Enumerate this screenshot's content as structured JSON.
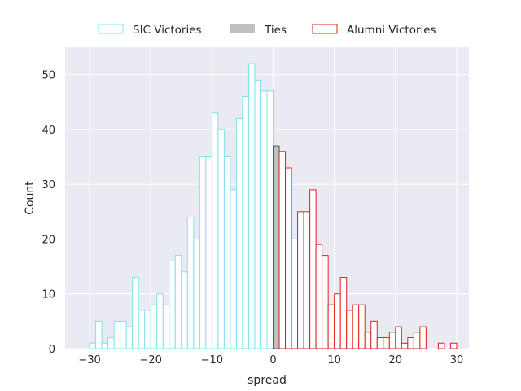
{
  "chart_data": {
    "type": "bar",
    "title": "",
    "xlabel": "spread",
    "ylabel": "Count",
    "xlim": [
      -34,
      32
    ],
    "ylim": [
      0,
      55
    ],
    "grid": true,
    "legend_position": "top-center",
    "bin_width": 1,
    "xticks": [
      -30,
      -20,
      -10,
      0,
      10,
      20,
      30
    ],
    "xtick_labels": [
      "−30",
      "−20",
      "−10",
      "0",
      "10",
      "20",
      "30"
    ],
    "yticks": [
      0,
      10,
      20,
      30,
      40,
      50
    ],
    "ytick_labels": [
      "0",
      "10",
      "20",
      "30",
      "40",
      "50"
    ],
    "series": [
      {
        "name": "SIC Victories",
        "color": "#7fe0ec",
        "fill": "#ffffff",
        "bins": [
          -30,
          -29,
          -28,
          -27,
          -26,
          -25,
          -24,
          -23,
          -22,
          -21,
          -20,
          -19,
          -18,
          -17,
          -16,
          -15,
          -14,
          -13,
          -12,
          -11,
          -10,
          -9,
          -8,
          -7,
          -6,
          -5,
          -4,
          -3,
          -2,
          -1
        ],
        "values": [
          1,
          5,
          1,
          2,
          5,
          5,
          4,
          13,
          7,
          7,
          8,
          10,
          8,
          16,
          17,
          14,
          24,
          20,
          35,
          35,
          43,
          40,
          35,
          29,
          42,
          46,
          52,
          49,
          47,
          47
        ]
      },
      {
        "name": "Ties",
        "color": "#555555",
        "fill": "#c0c0c0",
        "bins": [
          0
        ],
        "values": [
          37
        ]
      },
      {
        "name": "Alumni Victories",
        "color": "#e02020",
        "fill": "#ffffff",
        "bins": [
          1,
          2,
          3,
          4,
          5,
          6,
          7,
          8,
          9,
          10,
          11,
          12,
          13,
          14,
          15,
          16,
          17,
          18,
          19,
          20,
          21,
          22,
          23,
          24,
          25,
          26,
          27,
          28,
          29
        ],
        "values": [
          36,
          33,
          20,
          25,
          25,
          29,
          19,
          17,
          8,
          10,
          13,
          7,
          8,
          8,
          3,
          5,
          2,
          2,
          3,
          4,
          1,
          2,
          3,
          4,
          0,
          0,
          1,
          0,
          1
        ]
      }
    ]
  }
}
